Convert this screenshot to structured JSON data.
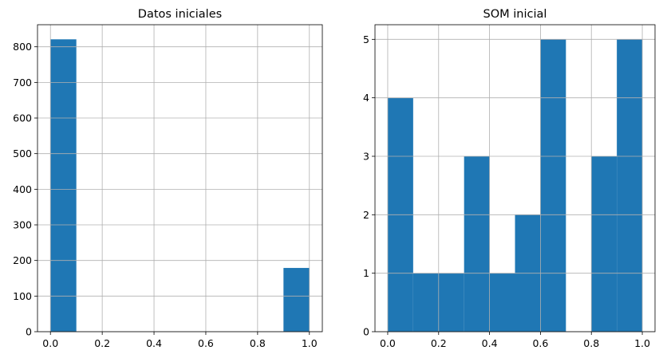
{
  "chart_data": [
    {
      "type": "bar",
      "title": "Datos iniciales",
      "xlabel": "",
      "ylabel": "",
      "xlim": [
        -0.05,
        1.05
      ],
      "ylim": [
        0,
        862
      ],
      "x_ticks": [
        0.0,
        0.2,
        0.4,
        0.6,
        0.8,
        1.0
      ],
      "x_tick_labels": [
        "0.0",
        "0.2",
        "0.4",
        "0.6",
        "0.8",
        "1.0"
      ],
      "y_ticks": [
        0,
        100,
        200,
        300,
        400,
        500,
        600,
        700,
        800
      ],
      "y_tick_labels": [
        "0",
        "100",
        "200",
        "300",
        "400",
        "500",
        "600",
        "700",
        "800"
      ],
      "grid": true,
      "bin_edges": [
        0.0,
        0.1,
        0.2,
        0.3,
        0.4,
        0.5,
        0.6,
        0.7,
        0.8,
        0.9,
        1.0
      ],
      "values": [
        821,
        0,
        0,
        0,
        0,
        0,
        0,
        0,
        0,
        179
      ],
      "color": "#1f77b4"
    },
    {
      "type": "bar",
      "title": "SOM inicial",
      "xlabel": "",
      "ylabel": "",
      "xlim": [
        -0.05,
        1.05
      ],
      "ylim": [
        0,
        5.25
      ],
      "x_ticks": [
        0.0,
        0.2,
        0.4,
        0.6,
        0.8,
        1.0
      ],
      "x_tick_labels": [
        "0.0",
        "0.2",
        "0.4",
        "0.6",
        "0.8",
        "1.0"
      ],
      "y_ticks": [
        0,
        1,
        2,
        3,
        4,
        5
      ],
      "y_tick_labels": [
        "0",
        "1",
        "2",
        "3",
        "4",
        "5"
      ],
      "grid": true,
      "bin_edges": [
        0.0,
        0.1,
        0.2,
        0.3,
        0.4,
        0.5,
        0.6,
        0.7,
        0.8,
        0.9,
        1.0
      ],
      "values": [
        4,
        1,
        1,
        3,
        1,
        2,
        5,
        0,
        3,
        5
      ],
      "color": "#1f77b4"
    }
  ]
}
